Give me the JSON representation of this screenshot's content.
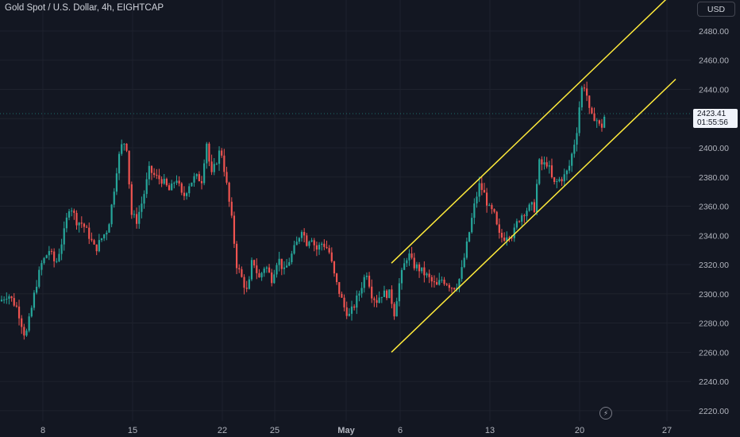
{
  "header": {
    "title": "Gold Spot / U.S. Dollar, 4h, EIGHTCAP",
    "currency": "USD"
  },
  "price_tag": {
    "price": "2423.41",
    "countdown": "01:55:56"
  },
  "colors": {
    "background": "#131722",
    "bull": "#26a69a",
    "bear": "#ef5350",
    "channel": "#ffeb3b",
    "grid": "#1e222d",
    "axis_text": "#b2b5be"
  },
  "icons": {
    "bolt": "lightning-bolt-icon"
  },
  "chart_data": {
    "type": "candlestick",
    "title": "Gold Spot / U.S. Dollar, 4h, EIGHTCAP",
    "y_axis": {
      "ticks": [
        "2220.00",
        "2240.00",
        "2260.00",
        "2280.00",
        "2300.00",
        "2320.00",
        "2340.00",
        "2360.00",
        "2380.00",
        "2400.00",
        "2420.00",
        "2440.00",
        "2460.00",
        "2480.00"
      ],
      "range": [
        2215,
        2491
      ]
    },
    "x_axis": {
      "ticks": [
        "8",
        "15",
        "22",
        "25",
        "May",
        "6",
        "13",
        "20",
        "27"
      ]
    },
    "last_price": 2423.41,
    "channel": {
      "upper": [
        {
          "x": "2024-05-05",
          "y": 2321
        },
        {
          "x": "2024-05-26",
          "y": 2508
        }
      ],
      "lower": [
        {
          "x": "2024-05-05",
          "y": 2260
        },
        {
          "x": "2024-05-26",
          "y": 2447
        }
      ]
    },
    "path": [
      [
        0,
        2295
      ],
      [
        10,
        2300
      ],
      [
        22,
        2290
      ],
      [
        32,
        2270
      ],
      [
        38,
        2285
      ],
      [
        45,
        2305
      ],
      [
        52,
        2320
      ],
      [
        62,
        2330
      ],
      [
        70,
        2320
      ],
      [
        80,
        2340
      ],
      [
        88,
        2362
      ],
      [
        96,
        2350
      ],
      [
        104,
        2348
      ],
      [
        112,
        2340
      ],
      [
        120,
        2330
      ],
      [
        128,
        2338
      ],
      [
        136,
        2345
      ],
      [
        142,
        2365
      ],
      [
        148,
        2390
      ],
      [
        155,
        2405
      ],
      [
        160,
        2400
      ],
      [
        165,
        2355
      ],
      [
        172,
        2350
      ],
      [
        180,
        2365
      ],
      [
        188,
        2385
      ],
      [
        196,
        2380
      ],
      [
        204,
        2378
      ],
      [
        214,
        2370
      ],
      [
        222,
        2380
      ],
      [
        230,
        2365
      ],
      [
        238,
        2375
      ],
      [
        246,
        2380
      ],
      [
        254,
        2378
      ],
      [
        260,
        2405
      ],
      [
        266,
        2380
      ],
      [
        272,
        2390
      ],
      [
        278,
        2400
      ],
      [
        284,
        2380
      ],
      [
        292,
        2350
      ],
      [
        298,
        2320
      ],
      [
        305,
        2310
      ],
      [
        312,
        2300
      ],
      [
        318,
        2325
      ],
      [
        326,
        2310
      ],
      [
        334,
        2320
      ],
      [
        342,
        2310
      ],
      [
        350,
        2325
      ],
      [
        358,
        2315
      ],
      [
        366,
        2325
      ],
      [
        374,
        2335
      ],
      [
        380,
        2345
      ],
      [
        386,
        2335
      ],
      [
        392,
        2340
      ],
      [
        398,
        2330
      ],
      [
        406,
        2335
      ],
      [
        414,
        2330
      ],
      [
        422,
        2310
      ],
      [
        428,
        2300
      ],
      [
        434,
        2290
      ],
      [
        440,
        2285
      ],
      [
        446,
        2292
      ],
      [
        452,
        2300
      ],
      [
        458,
        2310
      ],
      [
        462,
        2315
      ],
      [
        468,
        2300
      ],
      [
        474,
        2295
      ],
      [
        480,
        2300
      ],
      [
        486,
        2300
      ],
      [
        492,
        2300
      ],
      [
        496,
        2285
      ],
      [
        502,
        2305
      ],
      [
        508,
        2318
      ],
      [
        514,
        2328
      ],
      [
        520,
        2320
      ],
      [
        526,
        2318
      ],
      [
        532,
        2315
      ],
      [
        538,
        2312
      ],
      [
        544,
        2308
      ],
      [
        550,
        2305
      ],
      [
        556,
        2310
      ],
      [
        562,
        2308
      ],
      [
        568,
        2305
      ],
      [
        574,
        2305
      ],
      [
        580,
        2312
      ],
      [
        586,
        2328
      ],
      [
        592,
        2345
      ],
      [
        598,
        2362
      ],
      [
        604,
        2375
      ],
      [
        610,
        2368
      ],
      [
        616,
        2358
      ],
      [
        622,
        2355
      ],
      [
        628,
        2340
      ],
      [
        634,
        2338
      ],
      [
        640,
        2342
      ],
      [
        646,
        2340
      ],
      [
        652,
        2350
      ],
      [
        658,
        2355
      ],
      [
        664,
        2358
      ],
      [
        670,
        2360
      ],
      [
        674,
        2358
      ],
      [
        678,
        2390
      ],
      [
        684,
        2388
      ],
      [
        690,
        2390
      ],
      [
        694,
        2380
      ],
      [
        698,
        2375
      ],
      [
        704,
        2378
      ],
      [
        710,
        2380
      ],
      [
        716,
        2385
      ],
      [
        722,
        2400
      ],
      [
        726,
        2410
      ],
      [
        730,
        2430
      ],
      [
        734,
        2445
      ],
      [
        738,
        2440
      ],
      [
        742,
        2425
      ],
      [
        746,
        2420
      ],
      [
        750,
        2422
      ],
      [
        754,
        2415
      ],
      [
        758,
        2415
      ],
      [
        762,
        2423
      ]
    ]
  }
}
